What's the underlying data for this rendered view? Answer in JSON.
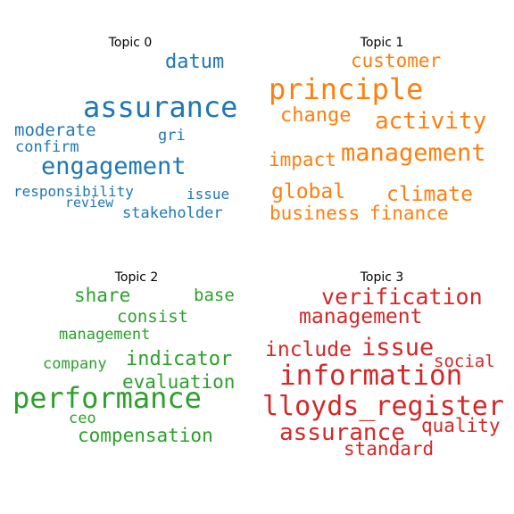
{
  "topics": [
    {
      "title": "Topic 0",
      "color": "#1f77b4",
      "words": [
        "datum",
        "assurance",
        "moderate",
        "gri",
        "confirm",
        "engagement",
        "responsibility",
        "issue",
        "review",
        "stakeholder"
      ]
    },
    {
      "title": "Topic 1",
      "color": "#ff7f0e",
      "words": [
        "customer",
        "principle",
        "change",
        "activity",
        "impact",
        "management",
        "global",
        "climate",
        "business",
        "finance"
      ]
    },
    {
      "title": "Topic 2",
      "color": "#2ca02c",
      "words": [
        "share",
        "base",
        "consist",
        "management",
        "indicator",
        "company",
        "evaluation",
        "performance",
        "ceo",
        "compensation"
      ]
    },
    {
      "title": "Topic 3",
      "color": "#d62728",
      "words": [
        "verification",
        "management",
        "include",
        "issue",
        "social",
        "information",
        "lloyds_register",
        "quality",
        "assurance",
        "standard"
      ]
    }
  ]
}
